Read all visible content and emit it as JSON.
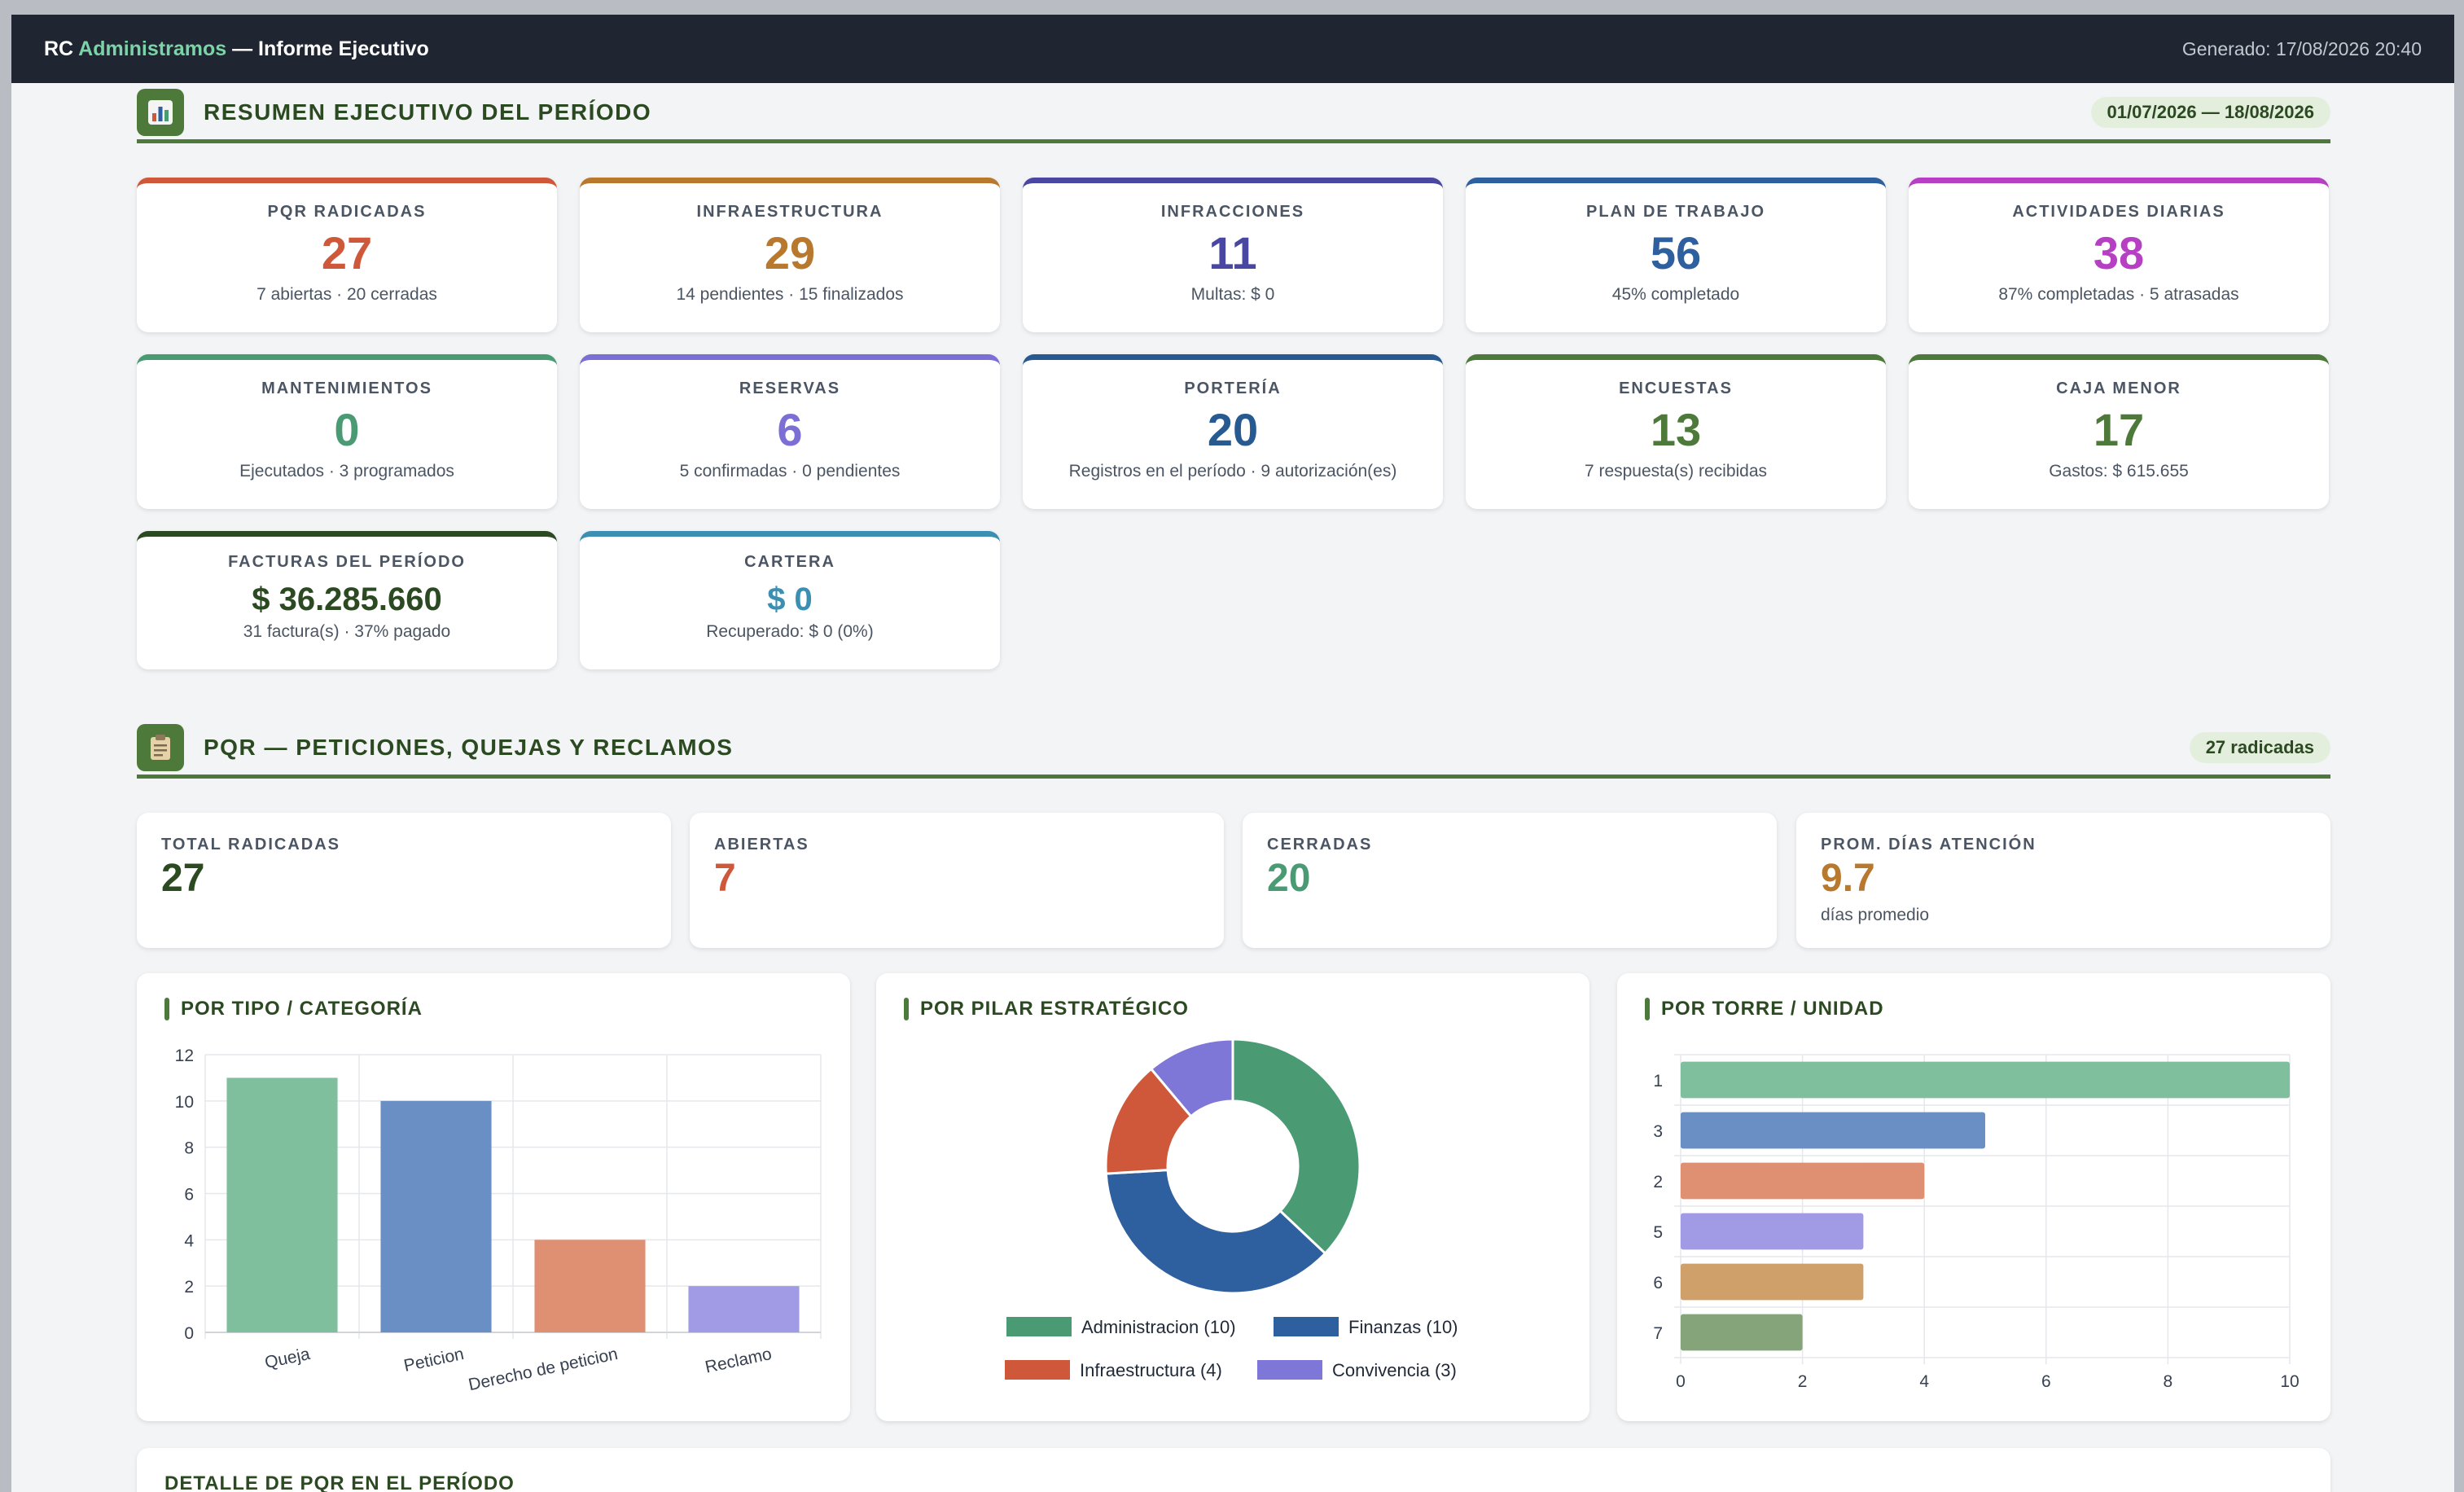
{
  "topbar": {
    "brand_rc": "RC",
    "brand_name": "Administramos",
    "brand_suffix": "— Informe Ejecutivo",
    "generated": "Generado: 17/08/2026 20:40"
  },
  "summary": {
    "icon": "chart-icon",
    "title": "RESUMEN EJECUTIVO DEL PERÍODO",
    "period": "01/07/2026 — 18/08/2026",
    "cards": [
      {
        "label": "PQR RADICADAS",
        "value": "27",
        "sub": "7 abiertas · 20 cerradas",
        "color": "#d0583a"
      },
      {
        "label": "INFRAESTRUCTURA",
        "value": "29",
        "sub": "14 pendientes · 15 finalizados",
        "color": "#b8782d"
      },
      {
        "label": "INFRACCIONES",
        "value": "11",
        "sub": "Multas: $ 0",
        "color": "#4a47a3"
      },
      {
        "label": "PLAN DE TRABAJO",
        "value": "56",
        "sub": "45% completado",
        "color": "#2e5f9e"
      },
      {
        "label": "ACTIVIDADES DIARIAS",
        "value": "38",
        "sub": "87% completadas · 5 atrasadas",
        "color": "#b63fc4"
      },
      {
        "label": "MANTENIMIENTOS",
        "value": "0",
        "sub": "Ejecutados · 3 programados",
        "color": "#4a9a74"
      },
      {
        "label": "RESERVAS",
        "value": "6",
        "sub": "5 confirmadas · 0 pendientes",
        "color": "#7b6fd6"
      },
      {
        "label": "PORTERÍA",
        "value": "20",
        "sub": "Registros en el período · 9 autorización(es)",
        "color": "#285a92"
      },
      {
        "label": "ENCUESTAS",
        "value": "13",
        "sub": "7 respuesta(s) recibidas",
        "color": "#4d7a3a"
      },
      {
        "label": "CAJA MENOR",
        "value": "17",
        "sub": "Gastos: $ 615.655",
        "color": "#4d7a3a"
      },
      {
        "label": "FACTURAS DEL PERÍODO",
        "value": "$ 36.285.660",
        "sub": "31 factura(s) · 37% pagado",
        "color": "#2c4a22"
      },
      {
        "label": "CARTERA",
        "value": "$ 0",
        "sub": "Recuperado: $ 0 (0%)",
        "color": "#3b8fb2"
      }
    ]
  },
  "pqr": {
    "icon": "clipboard-icon",
    "title": "PQR — PETICIONES, QUEJAS Y RECLAMOS",
    "badge": "27 radicadas",
    "stats": [
      {
        "label": "TOTAL RADICADAS",
        "value": "27",
        "sub": "",
        "color": "#2c4a22"
      },
      {
        "label": "ABIERTAS",
        "value": "7",
        "sub": "",
        "color": "#d0583a"
      },
      {
        "label": "CERRADAS",
        "value": "20",
        "sub": "",
        "color": "#4a9a74"
      },
      {
        "label": "PROM. DÍAS ATENCIÓN",
        "value": "9.7",
        "sub": "días promedio",
        "color": "#b8782d"
      }
    ],
    "chart_titles": [
      "POR TIPO / CATEGORÍA",
      "POR PILAR ESTRATÉGICO",
      "POR TORRE / UNIDAD"
    ]
  },
  "detail": {
    "title": "DETALLE DE PQR EN EL PERÍODO"
  },
  "chart_data": [
    {
      "type": "bar",
      "title": "POR TIPO / CATEGORÍA",
      "categories": [
        "Queja",
        "Peticion",
        "Derecho de peticion",
        "Reclamo"
      ],
      "values": [
        11,
        10,
        4,
        2
      ],
      "colors": [
        "#7fbf9e",
        "#6a8fc4",
        "#df8f72",
        "#a09be4"
      ],
      "ylim": [
        0,
        12
      ],
      "yticks": [
        0,
        2,
        4,
        6,
        8,
        10,
        12
      ],
      "grid": true
    },
    {
      "type": "pie",
      "title": "POR PILAR ESTRATÉGICO",
      "labels": [
        "Administracion",
        "Finanzas",
        "Infraestructura",
        "Convivencia"
      ],
      "values": [
        10,
        10,
        4,
        3
      ],
      "legend": [
        "Administracion (10)",
        "Finanzas (10)",
        "Infraestructura (4)",
        "Convivencia (3)"
      ],
      "colors": [
        "#4a9a74",
        "#2e5f9e",
        "#d0583a",
        "#7f77d8"
      ],
      "donut": true,
      "legend_position": "bottom"
    },
    {
      "type": "bar",
      "orientation": "horizontal",
      "title": "POR TORRE / UNIDAD",
      "categories": [
        "1",
        "3",
        "2",
        "5",
        "6",
        "7"
      ],
      "values": [
        10,
        5,
        4,
        3,
        3,
        2
      ],
      "colors": [
        "#7fbf9e",
        "#6a8fc4",
        "#df8f72",
        "#a09be4",
        "#cfa06a",
        "#85a479"
      ],
      "xlim": [
        0,
        10
      ],
      "xticks": [
        0,
        2,
        4,
        6,
        8,
        10
      ],
      "grid": true
    }
  ]
}
